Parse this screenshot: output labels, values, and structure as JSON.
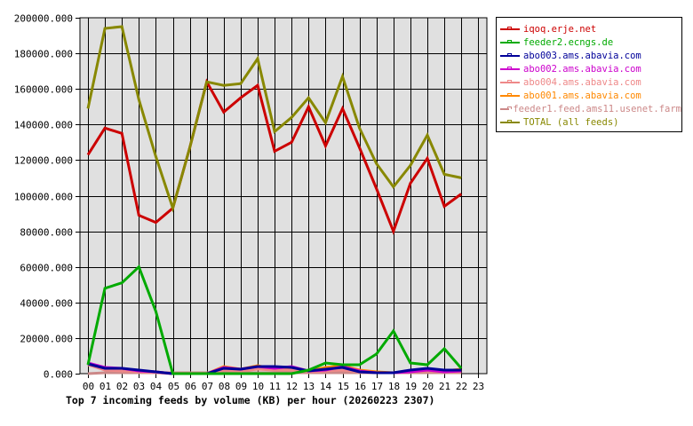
{
  "chart_data": {
    "type": "line",
    "title": "Top 7 incoming feeds by volume (KB) per hour (20260223 2307)",
    "xlabel": "",
    "ylabel": "",
    "ylim": [
      0,
      200000
    ],
    "grid": true,
    "legend_position": "right",
    "y_ticks": [
      "0.000",
      "20000.000",
      "40000.000",
      "60000.000",
      "80000.000",
      "100000.000",
      "120000.000",
      "140000.000",
      "160000.000",
      "180000.000",
      "200000.000"
    ],
    "categories": [
      "00",
      "01",
      "02",
      "03",
      "04",
      "05",
      "06",
      "07",
      "08",
      "09",
      "10",
      "11",
      "12",
      "13",
      "14",
      "15",
      "16",
      "17",
      "18",
      "19",
      "20",
      "21",
      "22",
      "23"
    ],
    "series": [
      {
        "name": "iqoq.erje.net",
        "color": "#cc0000",
        "values": [
          123000,
          138000,
          135000,
          89000,
          85000,
          93000,
          127000,
          164000,
          147000,
          155000,
          162000,
          125000,
          130000,
          150000,
          128000,
          149000,
          127000,
          104000,
          80000,
          107000,
          121000,
          94000,
          101000
        ]
      },
      {
        "name": "feeder2.ecngs.de",
        "color": "#00aa00",
        "values": [
          5000,
          48000,
          51000,
          60000,
          35000,
          0,
          0,
          0,
          0,
          0,
          0,
          0,
          0,
          2000,
          6000,
          5000,
          5000,
          11000,
          24000,
          6000,
          5000,
          14000,
          3000
        ]
      },
      {
        "name": "abo003.ams.abavia.com",
        "color": "#000099",
        "values": [
          5500,
          3000,
          3000,
          2000,
          1000,
          0,
          0,
          0,
          3000,
          2500,
          4000,
          4000,
          3500,
          1500,
          2500,
          3500,
          1000,
          500,
          500,
          2000,
          3000,
          2000,
          2000
        ]
      },
      {
        "name": "abo002.ams.abavia.com",
        "color": "#cc00cc",
        "values": [
          6000,
          3500,
          3000,
          1500,
          1000,
          0,
          0,
          0,
          3500,
          2500,
          4000,
          3000,
          4000,
          1500,
          2000,
          4000,
          1500,
          500,
          500,
          1000,
          2000,
          1000,
          1500
        ]
      },
      {
        "name": "abo004.ams.abavia.com",
        "color": "#ee8888",
        "values": [
          5000,
          2000,
          1500,
          1000,
          500,
          0,
          0,
          0,
          2000,
          1500,
          2500,
          2000,
          2000,
          1000,
          1500,
          2000,
          1000,
          500,
          500,
          1000,
          1500,
          1000,
          1000
        ]
      },
      {
        "name": "abo001.ams.abavia.com",
        "color": "#ff8800",
        "values": [
          5000,
          2500,
          2000,
          1500,
          1000,
          0,
          0,
          0,
          4000,
          2500,
          4500,
          2500,
          3500,
          1500,
          3500,
          4500,
          2000,
          1000,
          500,
          1500,
          2500,
          1500,
          2500
        ]
      },
      {
        "name": "feeder1.feed.ams11.usenet.farm",
        "color": "#cc8888",
        "values": [
          0,
          500,
          500,
          500,
          500,
          500,
          500,
          500,
          500,
          500,
          500,
          500,
          500,
          500,
          500,
          500,
          500,
          500,
          500,
          500,
          500,
          500,
          500
        ]
      },
      {
        "name": "TOTAL (all feeds)",
        "color": "#888800",
        "values": [
          149000,
          194000,
          195000,
          154000,
          122000,
          93000,
          127000,
          164000,
          162000,
          163000,
          177000,
          136000,
          144000,
          155000,
          141000,
          167000,
          138000,
          118000,
          105000,
          117000,
          134000,
          112000,
          110000
        ]
      }
    ]
  },
  "legend": {
    "items": [
      {
        "label": "iqoq.erje.net",
        "color": "#cc0000"
      },
      {
        "label": "feeder2.ecngs.de",
        "color": "#00aa00"
      },
      {
        "label": "abo003.ams.abavia.com",
        "color": "#000099"
      },
      {
        "label": "abo002.ams.abavia.com",
        "color": "#cc00cc"
      },
      {
        "label": "abo004.ams.abavia.com",
        "color": "#ee8888"
      },
      {
        "label": "abo001.ams.abavia.com",
        "color": "#ff8800"
      },
      {
        "label": "feeder1.feed.ams11.usenet.farm",
        "color": "#cc8888"
      },
      {
        "label": "TOTAL (all feeds)",
        "color": "#888800"
      }
    ]
  },
  "colors": {
    "plot_background": "#e0e0e0",
    "grid": "#000000",
    "page_background": "#ffffff"
  }
}
